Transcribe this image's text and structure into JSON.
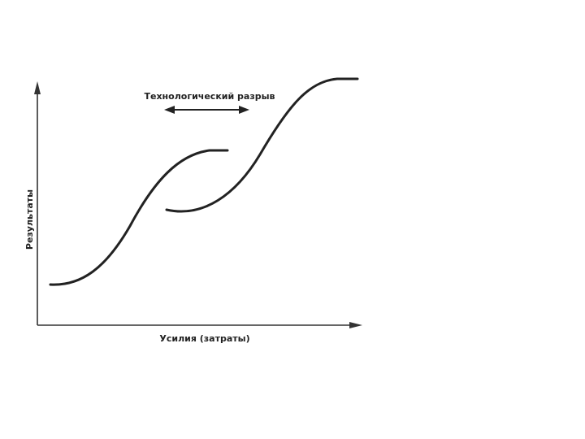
{
  "diagram": {
    "gap_label": "Технологический разрыв",
    "x_axis_label": "Усилия (затраты)",
    "y_axis_label": "Результаты"
  }
}
